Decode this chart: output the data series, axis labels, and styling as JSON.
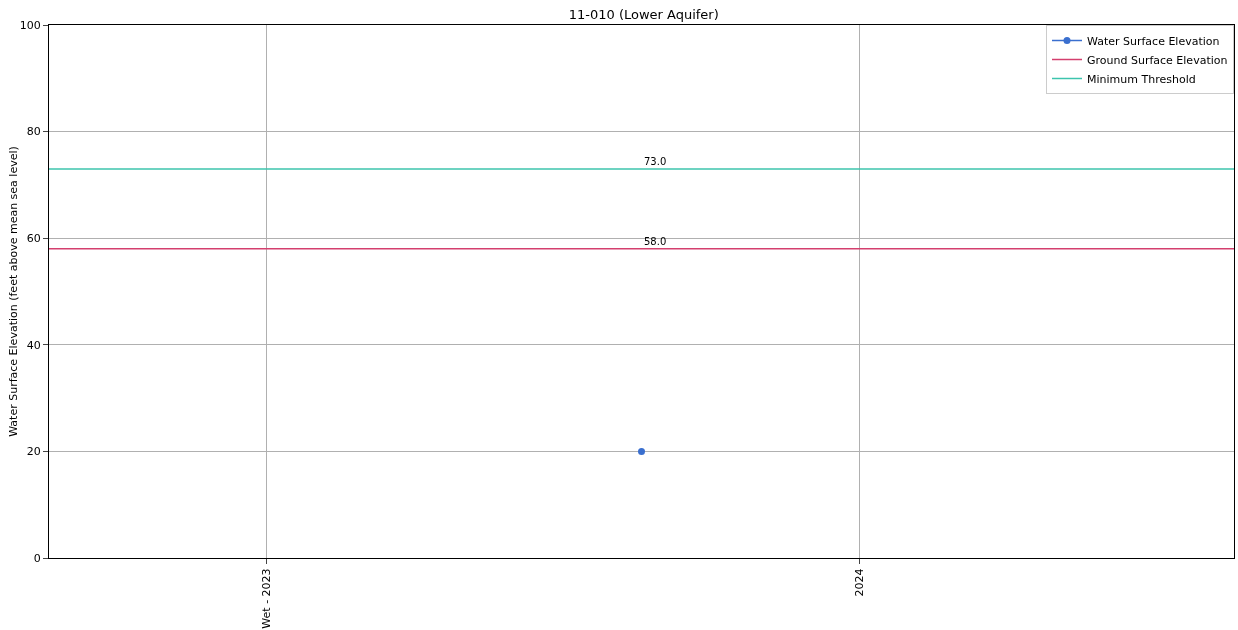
{
  "chart_data": {
    "type": "line",
    "title": "11-010 (Lower Aquifer)",
    "ylabel": "Water Surface Elevation (feet above mean sea level)",
    "xlim": [
      "2022-08-20",
      "2024-08-19"
    ],
    "xticks": [
      {
        "value": "2023-01-01",
        "label": "Wet - 2023"
      },
      {
        "value": "2024-01-01",
        "label": "2024"
      }
    ],
    "ylim": [
      0,
      100
    ],
    "yticks": [
      0,
      20,
      40,
      60,
      80,
      100
    ],
    "grid": true,
    "legend": "top right",
    "series": [
      {
        "name": "Water Surface Elevation",
        "color": "#3a6fcf",
        "marker": "circle",
        "x": [
          "2023-08-20"
        ],
        "values": [
          20
        ]
      },
      {
        "name": "Ground Surface Elevation",
        "color": "#d43f6e",
        "marker": "none",
        "x": [
          "2022-08-20",
          "2024-08-19"
        ],
        "values": [
          58,
          58
        ]
      },
      {
        "name": "Minimum Threshold",
        "color": "#3cc4ad",
        "marker": "none",
        "x": [
          "2022-08-20",
          "2024-08-19"
        ],
        "values": [
          73,
          73
        ]
      }
    ],
    "annotations": [
      {
        "text": "73.0",
        "x": "2023-08-20",
        "y": 73
      },
      {
        "text": "58.0",
        "x": "2023-08-20",
        "y": 58
      }
    ]
  }
}
